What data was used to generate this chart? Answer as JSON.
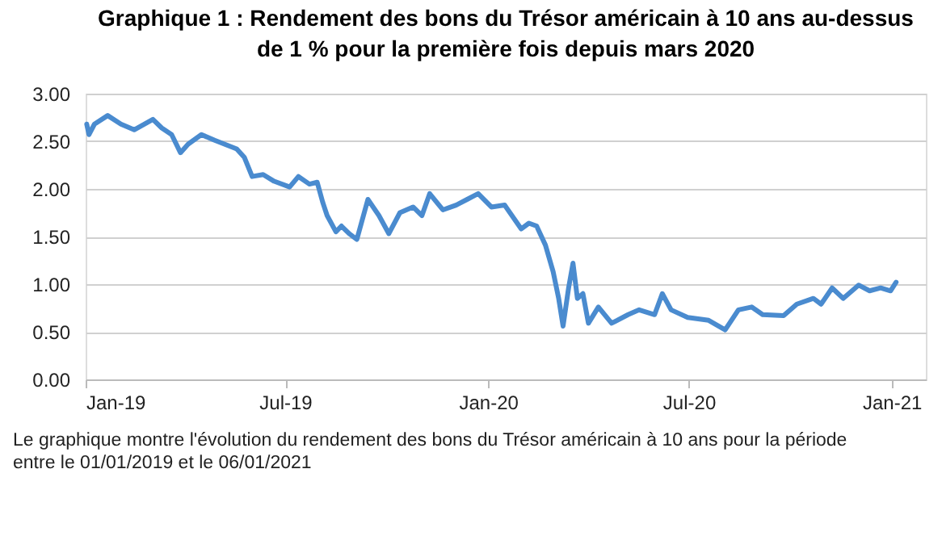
{
  "chart_data": {
    "type": "line",
    "title": [
      "Graphique 1 : Rendement des bons du Trésor américain à 10 ans au-dessus",
      "de 1 % pour la première fois depuis mars 2020"
    ],
    "x": [
      "2019-01-02",
      "2019-01-04",
      "2019-01-09",
      "2019-01-21",
      "2019-02-02",
      "2019-02-14",
      "2019-03-03",
      "2019-03-11",
      "2019-03-20",
      "2019-03-28",
      "2019-04-04",
      "2019-04-16",
      "2019-04-28",
      "2019-05-18",
      "2019-05-25",
      "2019-06-01",
      "2019-06-11",
      "2019-06-21",
      "2019-07-05",
      "2019-07-13",
      "2019-07-23",
      "2019-07-30",
      "2019-08-04",
      "2019-08-08",
      "2019-08-16",
      "2019-08-21",
      "2019-08-28",
      "2019-09-04",
      "2019-09-14",
      "2019-09-24",
      "2019-10-03",
      "2019-10-13",
      "2019-10-25",
      "2019-11-02",
      "2019-11-09",
      "2019-11-21",
      "2019-12-03",
      "2019-12-13",
      "2019-12-23",
      "2020-01-04",
      "2020-01-16",
      "2020-01-31",
      "2020-02-07",
      "2020-02-14",
      "2020-02-22",
      "2020-02-29",
      "2020-03-05",
      "2020-03-09",
      "2020-03-14",
      "2020-03-18",
      "2020-03-22",
      "2020-03-27",
      "2020-04-01",
      "2020-04-10",
      "2020-04-22",
      "2020-05-07",
      "2020-05-17",
      "2020-05-31",
      "2020-06-07",
      "2020-06-15",
      "2020-06-30",
      "2020-07-19",
      "2020-08-03",
      "2020-08-15",
      "2020-08-27",
      "2020-09-06",
      "2020-09-25",
      "2020-10-07",
      "2020-10-22",
      "2020-10-29",
      "2020-11-08",
      "2020-11-18",
      "2020-12-02",
      "2020-12-12",
      "2020-12-22",
      "2020-12-31",
      "2021-01-05"
    ],
    "series": [
      {
        "color": "#4a8bcf",
        "values": [
          2.68,
          2.57,
          2.68,
          2.77,
          2.68,
          2.62,
          2.73,
          2.64,
          2.57,
          2.38,
          2.47,
          2.57,
          2.51,
          2.42,
          2.33,
          2.13,
          2.15,
          2.08,
          2.02,
          2.13,
          2.05,
          2.07,
          1.86,
          1.72,
          1.55,
          1.61,
          1.53,
          1.47,
          1.89,
          1.72,
          1.53,
          1.75,
          1.81,
          1.72,
          1.95,
          1.78,
          1.83,
          1.89,
          1.95,
          1.81,
          1.83,
          1.58,
          1.64,
          1.61,
          1.41,
          1.13,
          0.85,
          0.56,
          0.96,
          1.22,
          0.85,
          0.9,
          0.59,
          0.76,
          0.59,
          0.68,
          0.73,
          0.68,
          0.9,
          0.73,
          0.65,
          0.62,
          0.52,
          0.73,
          0.76,
          0.68,
          0.67,
          0.79,
          0.85,
          0.79,
          0.96,
          0.85,
          0.99,
          0.93,
          0.96,
          0.93,
          1.02
        ]
      }
    ],
    "xlim": [
      "2019-01-01",
      "2021-02-01"
    ],
    "xticks": [
      {
        "value": "2019-01-01",
        "label": "Jan-19"
      },
      {
        "value": "2019-07-01",
        "label": "Jul-19"
      },
      {
        "value": "2020-01-01",
        "label": "Jan-20"
      },
      {
        "value": "2020-07-01",
        "label": "Jul-20"
      },
      {
        "value": "2021-01-01",
        "label": "Jan-21"
      }
    ],
    "ylim": [
      0,
      3
    ],
    "yticks": [
      {
        "value": 0,
        "label": "0.00"
      },
      {
        "value": 0.5,
        "label": "0.50"
      },
      {
        "value": 1,
        "label": "1.00"
      },
      {
        "value": 1.5,
        "label": "1.50"
      },
      {
        "value": 2,
        "label": "2.00"
      },
      {
        "value": 2.5,
        "label": "2.50"
      },
      {
        "value": 3,
        "label": "3.00"
      }
    ],
    "grid": "y",
    "annotations": [
      "Le graphique montre l'évolution du rendement des bons du Trésor américain à 10 ans pour la période entre le 01/01/2019 et le 06/01/2021"
    ]
  }
}
